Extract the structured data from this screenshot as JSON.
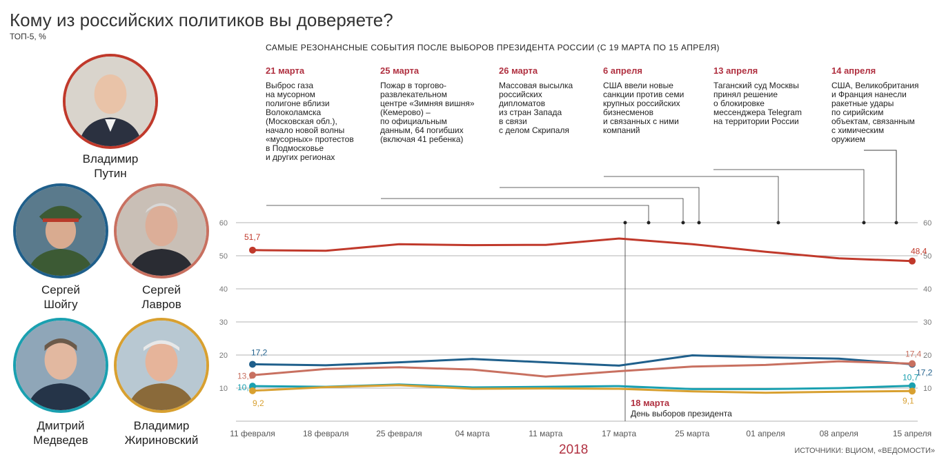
{
  "title": "Кому из российских политиков вы доверяете?",
  "subtitle": "ТОП-5, %",
  "events_header": "САМЫЕ РЕЗОНАНСНЫЕ СОБЫТИЯ ПОСЛЕ ВЫБОРОВ ПРЕЗИДЕНТА РОССИИ (С 19 МАРТА ПО 15 АПРЕЛЯ)",
  "events": [
    {
      "date": "21 марта",
      "text": "Выброс газа\nна мусорном\nполигоне вблизи\nВолоколамска\n(Московская обл.),\nначало новой волны\n«мусорных» протестов\nв Подмосковье\nи других регионах"
    },
    {
      "date": "25 марта",
      "text": "Пожар в торгово-\nразвлекательном\nцентре «Зимняя вишня»\n(Кемерово) –\nпо официальным\nданным, 64 погибших\n(включая 41 ребенка)"
    },
    {
      "date": "26 марта",
      "text": "Массовая высылка\nроссийских\nдипломатов\nиз стран Запада\nв связи\nс делом Скрипаля"
    },
    {
      "date": "6 апреля",
      "text": "США ввели новые\nсанкции против семи\nкрупных российских\nбизнесменов\nи связанных с ними\nкомпаний"
    },
    {
      "date": "13 апреля",
      "text": "Таганский суд Москвы\nпринял решение\nо блокировке\nмессенджера Telegram\nна территории России"
    },
    {
      "date": "14 апреля",
      "text": "США, Великобритания\nи Франция нанесли\nракетные удары\nпо сирийским\nобъектам, связанным\nс химическим\nоружием"
    }
  ],
  "politicians": [
    {
      "name": "Владимир\nПутин",
      "color": "#c0392b"
    },
    {
      "name": "Сергей\nШойгу",
      "color": "#1f5f8b"
    },
    {
      "name": "Сергей\nЛавров",
      "color": "#c87060"
    },
    {
      "name": "Дмитрий\nМедведев",
      "color": "#1aa0b0"
    },
    {
      "name": "Владимир\nЖириновский",
      "color": "#d8a030"
    }
  ],
  "election_marker": {
    "date": "18 марта",
    "label": "День выборов президента"
  },
  "year": "2018",
  "source": "ИСТОЧНИКИ: ВЦИОМ, «ВЕДОМОСТИ»",
  "chart_data": {
    "type": "line",
    "x": [
      "11 февраля",
      "18 февраля",
      "25 февраля",
      "04 марта",
      "11 марта",
      "17 марта",
      "25 марта",
      "01 апреля",
      "08 апреля",
      "15 апреля"
    ],
    "ylim": [
      0,
      60
    ],
    "yticks": [
      10,
      20,
      30,
      40,
      50,
      60
    ],
    "grid": true,
    "series": [
      {
        "name": "Владимир Путин",
        "color": "#c0392b",
        "values": [
          51.7,
          51.5,
          53.5,
          53.2,
          53.3,
          55.2,
          53.5,
          51.2,
          49.2,
          48.4
        ],
        "start_label": "51,7",
        "end_label": "48,4"
      },
      {
        "name": "Сергей Шойгу",
        "color": "#1f5f8b",
        "values": [
          17.2,
          16.9,
          17.8,
          18.8,
          17.8,
          16.8,
          19.9,
          19.3,
          18.9,
          17.2
        ],
        "start_label": "17,2",
        "end_label": "17,2"
      },
      {
        "name": "Сергей Лавров",
        "color": "#c87060",
        "values": [
          13.9,
          15.8,
          16.3,
          15.6,
          13.5,
          15.1,
          16.5,
          17.0,
          18.1,
          17.4
        ],
        "start_label": "13,9",
        "end_label": "17,4"
      },
      {
        "name": "Дмитрий Медведев",
        "color": "#1aa0b0",
        "values": [
          10.6,
          10.4,
          11.1,
          10.2,
          10.4,
          10.6,
          9.7,
          9.7,
          10.0,
          10.7
        ],
        "start_label": "10,6",
        "end_label": "10,7"
      },
      {
        "name": "Владимир Жириновский",
        "color": "#d8a030",
        "values": [
          9.2,
          10.3,
          10.9,
          9.8,
          9.9,
          9.8,
          9.0,
          8.6,
          8.9,
          9.1
        ],
        "start_label": "9,2",
        "end_label": "9,1"
      }
    ]
  }
}
